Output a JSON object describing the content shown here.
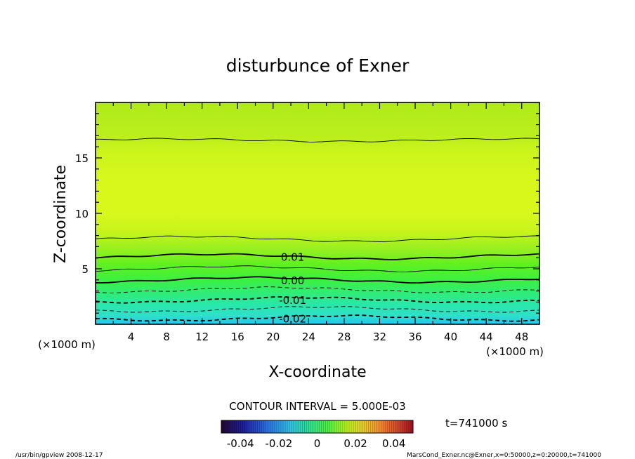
{
  "chart_data": {
    "type": "heatmap",
    "title": "disturbunce of Exner",
    "xlabel": "X-coordinate",
    "ylabel": "Z-coordinate",
    "x_unit": "(×1000 m)",
    "y_unit": "(×1000 m)",
    "xlim": [
      0,
      50
    ],
    "ylim": [
      0,
      20
    ],
    "x_ticks": [
      4,
      8,
      12,
      16,
      20,
      24,
      28,
      32,
      36,
      40,
      44,
      48
    ],
    "y_ticks": [
      5,
      10,
      15
    ],
    "contour_interval_label": "CONTOUR INTERVAL = 5.000E-03",
    "contours": [
      {
        "value": -0.02,
        "label": "-0.02",
        "z": 0.55,
        "dashed": true,
        "bold": true
      },
      {
        "value": -0.015,
        "z": 1.35,
        "dashed": true,
        "bold": false
      },
      {
        "value": -0.01,
        "label": "-0.01",
        "z": 2.2,
        "dashed": true,
        "bold": true
      },
      {
        "value": -0.005,
        "z": 3.1,
        "dashed": true,
        "bold": false
      },
      {
        "value": 0.0,
        "label": "0.00",
        "z": 4.0,
        "dashed": false,
        "bold": true
      },
      {
        "value": 0.005,
        "z": 5.0,
        "dashed": false,
        "bold": false
      },
      {
        "value": 0.01,
        "label": "0.01",
        "z": 6.1,
        "dashed": false,
        "bold": true
      },
      {
        "value": 0.015,
        "z": 7.7,
        "dashed": false,
        "bold": false
      },
      {
        "value": 0.015,
        "z": 16.6,
        "dashed": false,
        "bold": false
      }
    ],
    "colorbar_ticks": [
      "-0.04",
      "-0.02",
      "0",
      "0.02",
      "0.04"
    ],
    "colorbar_range": [
      -0.05,
      0.05
    ],
    "time_label": "t=741000 s"
  },
  "footer": {
    "left": "/usr/bin/gpview   2008-12-17",
    "right": "MarsCond_Exner.nc@Exner,x=0:50000,z=0:20000,t=741000"
  }
}
